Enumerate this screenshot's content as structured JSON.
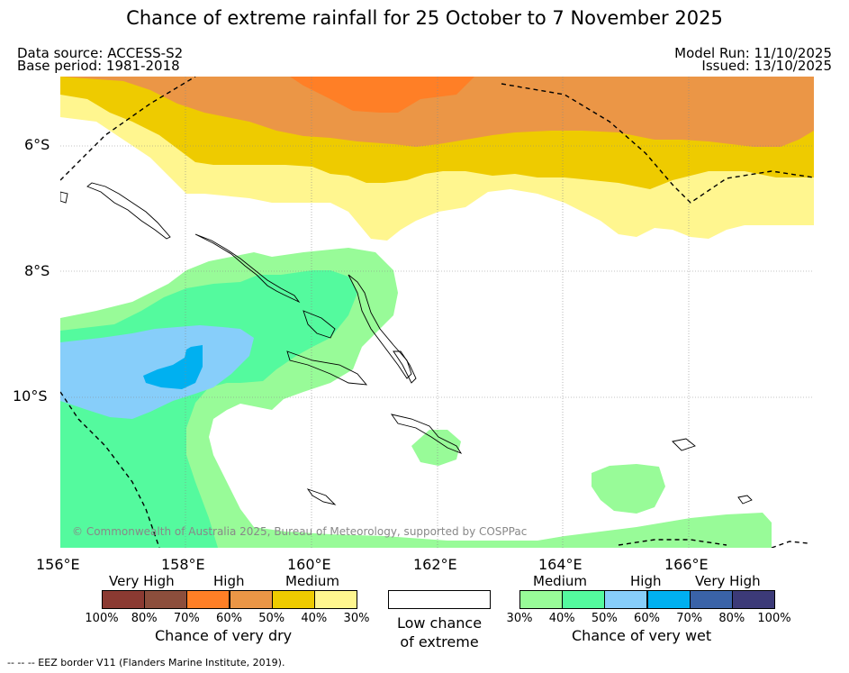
{
  "title": "Chance of extreme rainfall for 25 October to 7 November 2025",
  "header": {
    "data_source": "Data source: ACCESS-S2",
    "base_period": "Base period: 1981-2018",
    "model_run": "Model Run: 11/10/2025",
    "issued": "Issued: 13/10/2025"
  },
  "axes": {
    "lat_labels": [
      "6°S",
      "8°S",
      "10°S"
    ],
    "lon_labels": [
      "156°E",
      "158°E",
      "160°E",
      "162°E",
      "164°E",
      "166°E"
    ]
  },
  "copyright": "© Commonwealth of Australia 2025, Bureau of Meteorology, supported by COSPPac",
  "legend": {
    "dry": {
      "levels": [
        "Very High",
        "High",
        "Medium"
      ],
      "colors": [
        "#8b3a32",
        "#8c4e3c",
        "#ff7f26",
        "#eb9646",
        "#eecb00",
        "#fff68f"
      ],
      "ticks": [
        "100%",
        "80%",
        "70%",
        "60%",
        "50%",
        "40%",
        "30%"
      ],
      "caption": "Chance of very dry"
    },
    "low": {
      "line1": "Low chance",
      "line2": "of extreme"
    },
    "wet": {
      "levels": [
        "Medium",
        "High",
        "Very High"
      ],
      "colors": [
        "#98fb98",
        "#54fa9e",
        "#87cefa",
        "#00b0f0",
        "#3a63a8",
        "#3c3a78"
      ],
      "ticks": [
        "30%",
        "40%",
        "50%",
        "60%",
        "70%",
        "80%",
        "100%"
      ],
      "caption": "Chance of very wet"
    }
  },
  "footer": "--  --  -- EEZ border V11 (Flanders Marine Institute, 2019)."
}
